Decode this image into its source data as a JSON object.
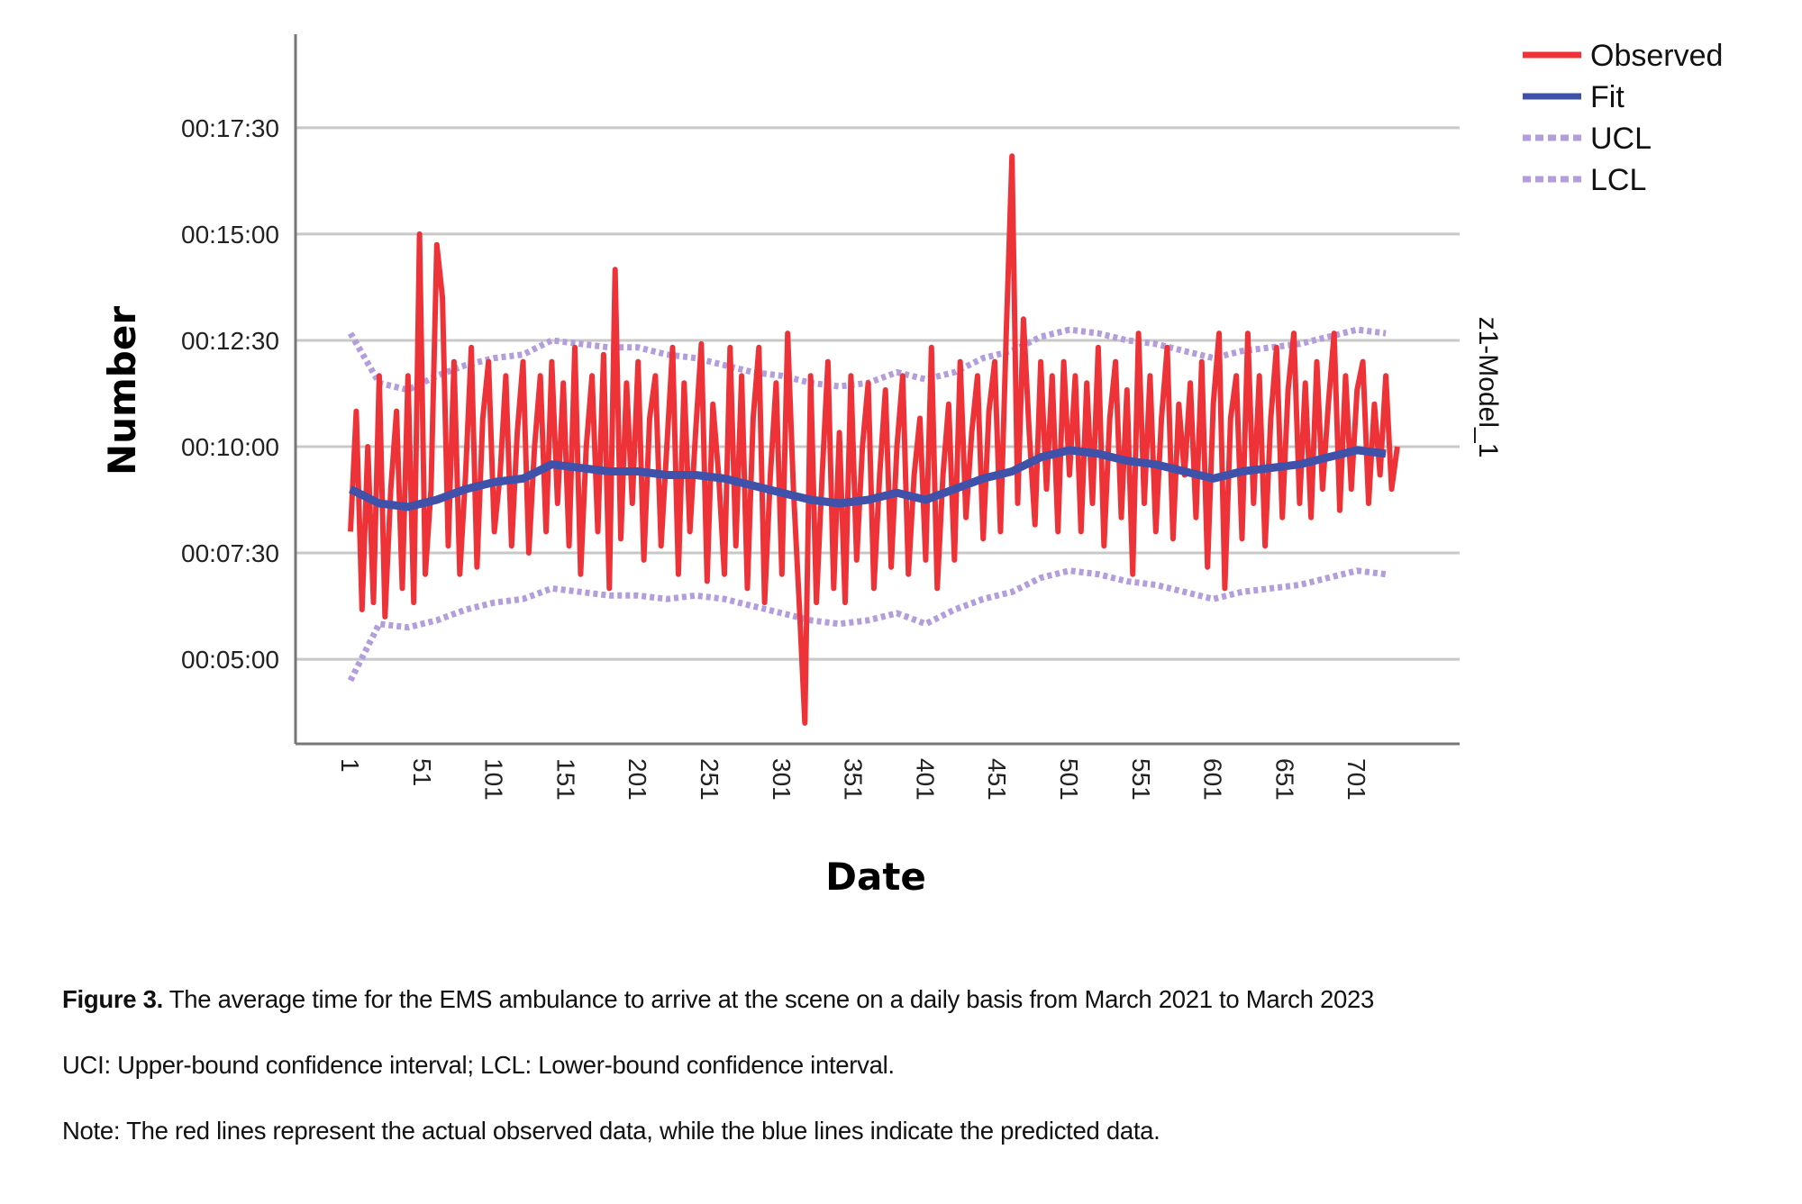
{
  "chart_data": {
    "type": "line",
    "title": "",
    "xlabel": "Date",
    "ylabel": "Number",
    "side_label": "z1-Model_1",
    "xlim": [
      1,
      731
    ],
    "ylim_seconds": [
      190,
      1080
    ],
    "grid": "horizontal",
    "legend_placement": "top-right",
    "y_ticks": [
      {
        "label": "00:17:30",
        "seconds": 1050
      },
      {
        "label": "00:15:00",
        "seconds": 900
      },
      {
        "label": "00:12:30",
        "seconds": 750
      },
      {
        "label": "00:10:00",
        "seconds": 600
      },
      {
        "label": "00:07:30",
        "seconds": 450
      },
      {
        "label": "00:05:00",
        "seconds": 300
      }
    ],
    "x_ticks": [
      "1",
      "51",
      "101",
      "151",
      "201",
      "251",
      "301",
      "351",
      "401",
      "451",
      "501",
      "551",
      "601",
      "651",
      "701"
    ],
    "x_tick_values": [
      1,
      51,
      101,
      151,
      201,
      251,
      301,
      351,
      401,
      451,
      501,
      551,
      601,
      651,
      701
    ],
    "series": [
      {
        "name": "Observed",
        "color": "#ee3338",
        "style": "solid",
        "x_start": 1,
        "x_step": 4,
        "values_seconds": [
          480,
          650,
          370,
          600,
          380,
          700,
          360,
          540,
          650,
          400,
          700,
          380,
          900,
          420,
          540,
          885,
          810,
          460,
          720,
          420,
          560,
          740,
          430,
          640,
          720,
          480,
          560,
          700,
          460,
          620,
          720,
          450,
          600,
          700,
          480,
          720,
          520,
          690,
          460,
          740,
          420,
          600,
          700,
          480,
          730,
          400,
          850,
          470,
          690,
          520,
          720,
          440,
          640,
          700,
          460,
          600,
          740,
          420,
          690,
          480,
          620,
          745,
          410,
          660,
          560,
          420,
          740,
          460,
          700,
          400,
          640,
          740,
          380,
          560,
          690,
          420,
          760,
          540,
          380,
          210,
          700,
          380,
          560,
          720,
          400,
          620,
          380,
          700,
          440,
          600,
          690,
          400,
          560,
          680,
          430,
          600,
          700,
          420,
          560,
          640,
          440,
          740,
          400,
          560,
          660,
          440,
          720,
          500,
          620,
          700,
          470,
          650,
          720,
          480,
          760,
          1010,
          520,
          780,
          620,
          490,
          720,
          540,
          700,
          480,
          720,
          560,
          700,
          480,
          690,
          520,
          740,
          460,
          640,
          720,
          500,
          680,
          420,
          760,
          520,
          700,
          480,
          640,
          740,
          470,
          660,
          560,
          690,
          500,
          720,
          430,
          660,
          760,
          400,
          640,
          700,
          470,
          760,
          520,
          700,
          460,
          640,
          740,
          500,
          680,
          760,
          520,
          690,
          500,
          720,
          540,
          660,
          760,
          510,
          700,
          540,
          680,
          720,
          520,
          660,
          560,
          700,
          540,
          600
        ]
      },
      {
        "name": "Fit",
        "color": "#3f51a8",
        "style": "solid",
        "x_start": 1,
        "x_step": 20,
        "values_seconds": [
          540,
          520,
          515,
          525,
          540,
          550,
          555,
          575,
          570,
          565,
          565,
          560,
          560,
          555,
          545,
          535,
          525,
          520,
          525,
          535,
          525,
          540,
          555,
          565,
          585,
          595,
          590,
          580,
          575,
          565,
          555,
          565,
          570,
          575,
          585,
          595,
          590
        ]
      },
      {
        "name": "UCL",
        "color": "#b39ddb",
        "style": "dotted",
        "x_start": 1,
        "x_step": 20,
        "values_seconds": [
          760,
          690,
          680,
          700,
          715,
          725,
          730,
          750,
          745,
          740,
          740,
          730,
          725,
          715,
          705,
          700,
          690,
          685,
          690,
          705,
          695,
          705,
          725,
          735,
          755,
          765,
          760,
          750,
          745,
          735,
          725,
          735,
          740,
          745,
          755,
          765,
          760
        ]
      },
      {
        "name": "LCL",
        "color": "#b39ddb",
        "style": "dotted",
        "x_start": 1,
        "x_step": 20,
        "values_seconds": [
          270,
          350,
          345,
          355,
          370,
          380,
          385,
          400,
          395,
          390,
          390,
          385,
          390,
          385,
          375,
          365,
          355,
          350,
          355,
          365,
          350,
          370,
          385,
          395,
          415,
          425,
          420,
          410,
          405,
          395,
          385,
          395,
          400,
          405,
          415,
          425,
          420
        ]
      }
    ]
  },
  "caption": {
    "figure_label": "Figure 3.",
    "figure_text": " The average time for the EMS ambulance to arrive at the scene on a daily basis from March 2021 to March 2023",
    "abbreviations": "UCI: Upper-bound confidence interval; LCL: Lower-bound confidence interval.",
    "note": "Note: The red lines represent the actual observed data, while the blue lines indicate the predicted data."
  }
}
